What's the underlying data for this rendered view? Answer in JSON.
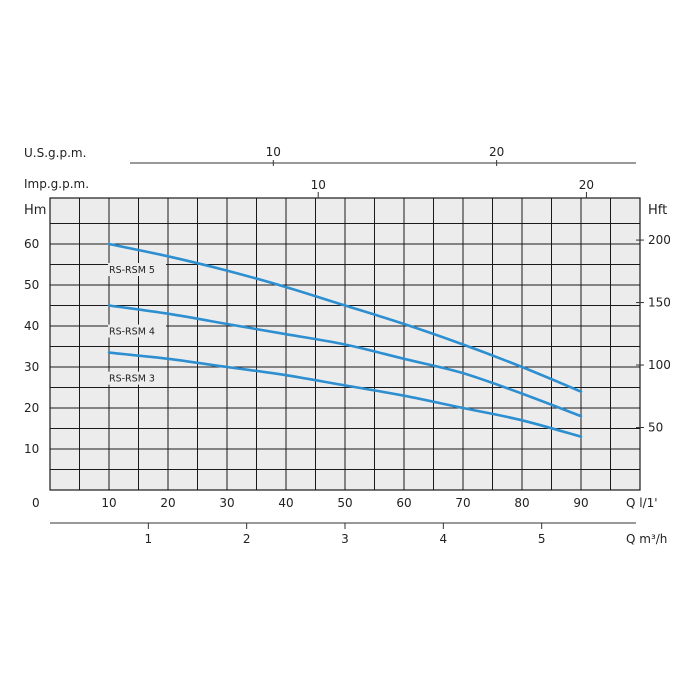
{
  "chart_data": {
    "type": "line",
    "x_axes": {
      "usgpm": {
        "label": "U.S.g.p.m.",
        "ticks": [
          10,
          20
        ]
      },
      "impgpm": {
        "label": "Imp.g.p.m.",
        "ticks": [
          10,
          20
        ]
      },
      "q_lmin": {
        "label": "Q l/1'",
        "ticks": [
          10,
          20,
          30,
          40,
          50,
          60,
          70,
          80,
          90
        ],
        "origin_label": "0",
        "range": [
          0,
          100
        ]
      },
      "q_m3h": {
        "label": "Q m³/h",
        "ticks": [
          1,
          2,
          3,
          4,
          5
        ]
      }
    },
    "y_axes": {
      "left": {
        "label": "Hm",
        "ticks": [
          10,
          20,
          30,
          40,
          50,
          60
        ],
        "range": [
          0,
          65
        ]
      },
      "right": {
        "label": "Hft",
        "ticks": [
          50,
          100,
          150,
          200
        ]
      }
    },
    "grid": true,
    "series": [
      {
        "name": "RS-RSM 5",
        "x": [
          10,
          20,
          30,
          40,
          50,
          60,
          70,
          80,
          90
        ],
        "y": [
          60,
          57,
          53.5,
          49.5,
          45,
          40.5,
          35.5,
          30,
          24
        ]
      },
      {
        "name": "RS-RSM 4",
        "x": [
          10,
          20,
          30,
          40,
          50,
          60,
          70,
          80,
          90
        ],
        "y": [
          45,
          43,
          40.5,
          38,
          35.5,
          32,
          28.5,
          23.5,
          18
        ]
      },
      {
        "name": "RS-RSM 3",
        "x": [
          10,
          20,
          30,
          40,
          50,
          60,
          70,
          80,
          90
        ],
        "y": [
          33.5,
          32,
          30,
          28,
          25.5,
          23,
          20,
          17,
          13
        ]
      }
    ]
  },
  "style": {
    "curve_color": "#2e8fd0",
    "grid_color": "#1a1a1a",
    "plot_bg": "#ececec"
  }
}
